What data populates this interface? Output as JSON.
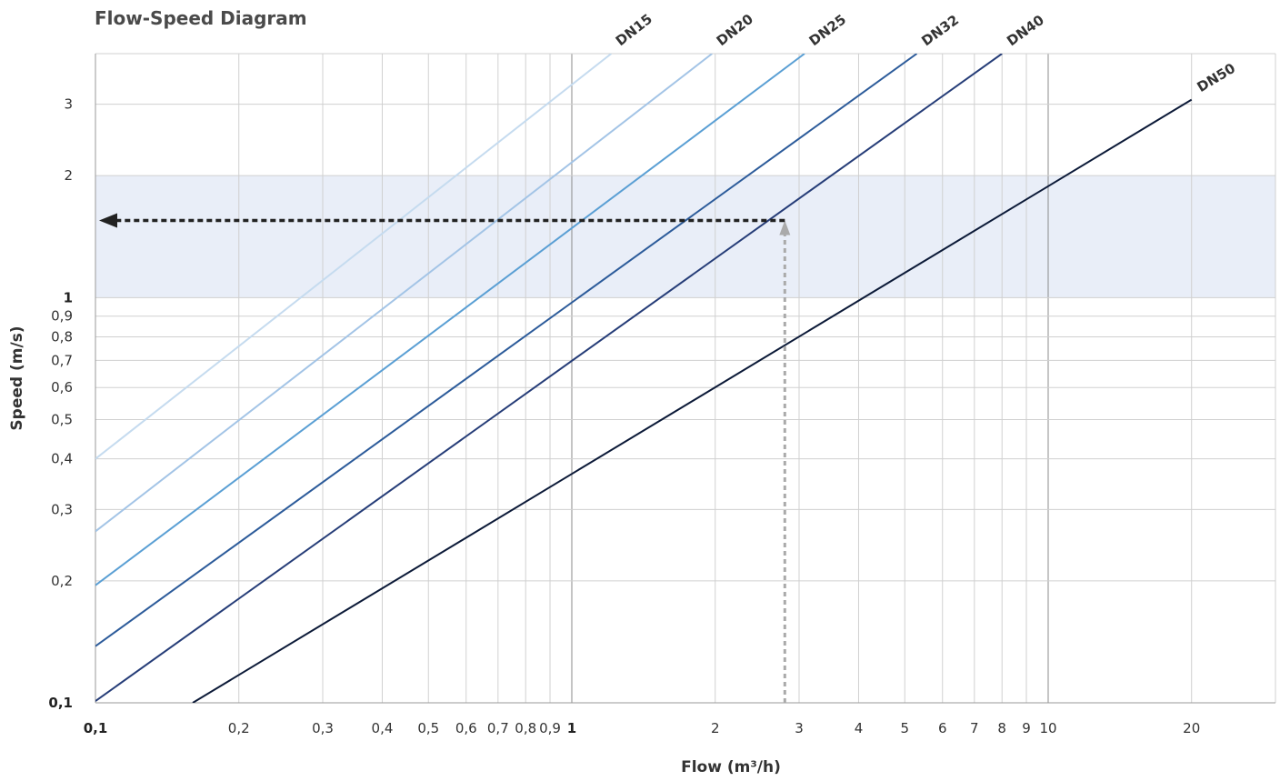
{
  "chart_data": {
    "type": "line",
    "title": "Flow-Speed Diagram",
    "xlabel": "Flow (m³/h)",
    "ylabel": "Speed (m/s)",
    "x_scale": "log",
    "y_scale": "log",
    "xlim": [
      0.1,
      30
    ],
    "ylim": [
      0.1,
      4
    ],
    "x_ticks": [
      {
        "value": 0.1,
        "label": "0,1",
        "bold": true
      },
      {
        "value": 0.2,
        "label": "0,2"
      },
      {
        "value": 0.3,
        "label": "0,3"
      },
      {
        "value": 0.4,
        "label": "0,4"
      },
      {
        "value": 0.5,
        "label": "0,5"
      },
      {
        "value": 0.6,
        "label": "0,6"
      },
      {
        "value": 0.7,
        "label": "0,7"
      },
      {
        "value": 0.8,
        "label": "0,8"
      },
      {
        "value": 0.9,
        "label": "0,9"
      },
      {
        "value": 1,
        "label": "1",
        "bold": true
      },
      {
        "value": 2,
        "label": "2"
      },
      {
        "value": 3,
        "label": "3"
      },
      {
        "value": 4,
        "label": "4"
      },
      {
        "value": 5,
        "label": "5"
      },
      {
        "value": 6,
        "label": "6"
      },
      {
        "value": 7,
        "label": "7"
      },
      {
        "value": 8,
        "label": "8"
      },
      {
        "value": 9,
        "label": "9"
      },
      {
        "value": 10,
        "label": "10"
      },
      {
        "value": 20,
        "label": "20"
      }
    ],
    "y_ticks": [
      {
        "value": 0.1,
        "label": "0,1",
        "bold": true
      },
      {
        "value": 0.2,
        "label": "0,2"
      },
      {
        "value": 0.3,
        "label": "0,3"
      },
      {
        "value": 0.4,
        "label": "0,4"
      },
      {
        "value": 0.5,
        "label": "0,5"
      },
      {
        "value": 0.6,
        "label": "0,6"
      },
      {
        "value": 0.7,
        "label": "0,7"
      },
      {
        "value": 0.8,
        "label": "0,8"
      },
      {
        "value": 0.9,
        "label": "0,9"
      },
      {
        "value": 1,
        "label": "1",
        "bold": true
      },
      {
        "value": 2,
        "label": "2"
      },
      {
        "value": 3,
        "label": "3"
      }
    ],
    "x_grid": [
      0.1,
      0.2,
      0.3,
      0.4,
      0.5,
      0.6,
      0.7,
      0.8,
      0.9,
      1,
      2,
      3,
      4,
      5,
      6,
      7,
      8,
      9,
      10,
      20,
      30
    ],
    "y_grid": [
      0.1,
      0.2,
      0.3,
      0.4,
      0.5,
      0.6,
      0.7,
      0.8,
      0.9,
      1,
      2,
      3,
      4
    ],
    "x_major_grid": [
      1,
      10
    ],
    "recommended_band": {
      "y_from": 1,
      "y_to": 2,
      "color": "#e9eef8"
    },
    "series": [
      {
        "name": "DN15",
        "color": "#c5dbef",
        "points": [
          [
            0.1,
            0.4
          ],
          [
            1.21,
            4
          ]
        ]
      },
      {
        "name": "DN20",
        "color": "#a3c4e6",
        "points": [
          [
            0.1,
            0.265
          ],
          [
            1.97,
            4
          ]
        ]
      },
      {
        "name": "DN25",
        "color": "#5a9fd4",
        "points": [
          [
            0.1,
            0.195
          ],
          [
            3.08,
            4
          ]
        ]
      },
      {
        "name": "DN32",
        "color": "#2c5b9a",
        "points": [
          [
            0.1,
            0.138
          ],
          [
            5.3,
            4
          ]
        ]
      },
      {
        "name": "DN40",
        "color": "#263d78",
        "points": [
          [
            0.1,
            0.101
          ],
          [
            8.0,
            4
          ]
        ]
      },
      {
        "name": "DN50",
        "color": "#0c1a38",
        "points": [
          [
            0.16,
            0.1
          ],
          [
            20,
            3.08
          ]
        ]
      }
    ],
    "example_path": {
      "flow": 2.8,
      "speed": 1.55,
      "vertical_color": "#aaaaaa",
      "horizontal_color": "#222222"
    }
  }
}
